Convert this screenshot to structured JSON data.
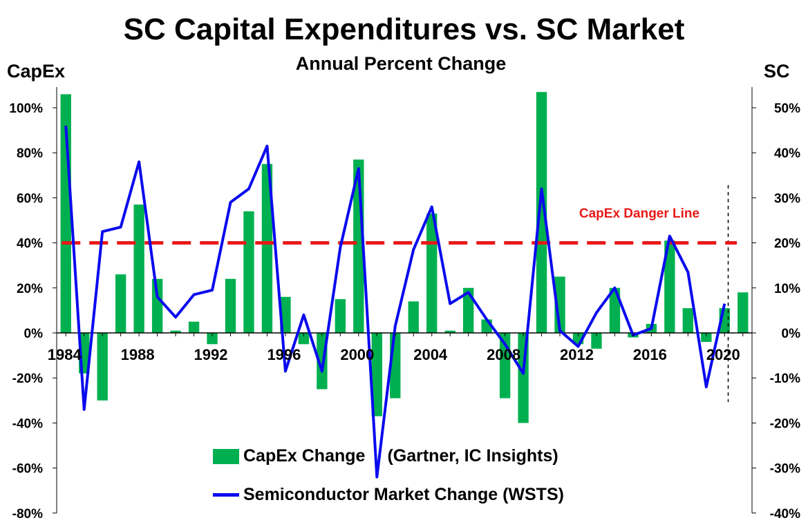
{
  "title": "SC Capital Expenditures vs. SC Market",
  "subtitle": "Annual Percent Change",
  "left_axis_title": "CapEx",
  "right_axis_title": "SC",
  "annotation": "CapEx Danger Line",
  "legend": {
    "bar_label": "CapEx Change",
    "bar_source": "(Gartner, IC Insights)",
    "line_label": "Semiconductor Market Change (WSTS)"
  },
  "colors": {
    "bar": "#00B050",
    "line": "#0A0AEE",
    "danger": "#E81818"
  },
  "chart_data": {
    "type": "bar",
    "years": [
      1984,
      1985,
      1986,
      1987,
      1988,
      1989,
      1990,
      1991,
      1992,
      1993,
      1994,
      1995,
      1996,
      1997,
      1998,
      1999,
      2000,
      2001,
      2002,
      2003,
      2004,
      2005,
      2006,
      2007,
      2008,
      2009,
      2010,
      2011,
      2012,
      2013,
      2014,
      2015,
      2016,
      2017,
      2018,
      2019,
      2020,
      2021
    ],
    "x_tick_labels": [
      "1984",
      "1988",
      "1992",
      "1996",
      "2000",
      "2004",
      "2008",
      "2012",
      "2016",
      "2020"
    ],
    "series": [
      {
        "name": "CapEx Change",
        "axis": "left",
        "type": "bar",
        "values": [
          106,
          -18,
          -30,
          26,
          57,
          24,
          1,
          5,
          -5,
          24,
          54,
          75,
          16,
          -5,
          -25,
          15,
          77,
          -37,
          -29,
          14,
          53,
          1,
          20,
          6,
          -29,
          -40,
          107,
          25,
          -5,
          -7,
          20,
          -2,
          4,
          41,
          11,
          -4,
          11,
          18
        ]
      },
      {
        "name": "Semiconductor Market Change",
        "axis": "right",
        "type": "line",
        "values": [
          46,
          -17,
          22.5,
          23.5,
          38,
          8,
          3.5,
          8.5,
          9.5,
          29,
          32,
          41.5,
          -8.5,
          4,
          -8.5,
          19,
          36.5,
          -32,
          1.5,
          18.5,
          28,
          6.5,
          9,
          3,
          -2.5,
          -9,
          32,
          0.5,
          -3,
          4.5,
          10,
          -0.5,
          1,
          21.5,
          13.5,
          -12,
          6.5
        ]
      }
    ],
    "left_axis": {
      "min": -80,
      "max": 100,
      "ticks": [
        "-80%",
        "-60%",
        "-40%",
        "-20%",
        "0%",
        "20%",
        "40%",
        "60%",
        "80%",
        "100%"
      ]
    },
    "right_axis": {
      "min": -40,
      "max": 50,
      "ticks": [
        "-40%",
        "-30%",
        "-20%",
        "-10%",
        "0%",
        "10%",
        "20%",
        "30%",
        "40%",
        "50%"
      ]
    },
    "danger_line_value": 40,
    "grid": false,
    "legend_position": "bottom-center"
  }
}
